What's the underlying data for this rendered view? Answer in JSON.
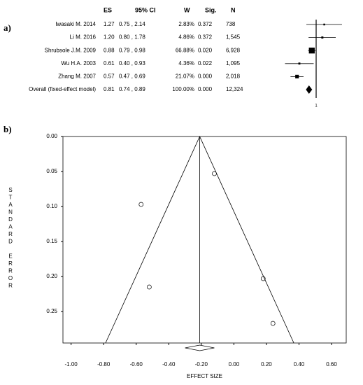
{
  "chart_data": [
    {
      "type": "forest",
      "label": "a)",
      "columns": [
        "ES",
        "95% CI",
        "W",
        "Sig.",
        "N"
      ],
      "studies": [
        {
          "name": "Iwasaki M. 2014",
          "es": 1.27,
          "es_label": "1.27",
          "ci_low": 0.75,
          "ci_high": 2.14,
          "ci_label": "0.75 , 2.14",
          "w": 2.83,
          "w_label": "2.83%",
          "sig": 0.372,
          "sig_label": "0.372",
          "n": 738,
          "n_label": "738"
        },
        {
          "name": "Li M. 2016",
          "es": 1.2,
          "es_label": "1.20",
          "ci_low": 0.8,
          "ci_high": 1.78,
          "ci_label": "0.80 , 1.78",
          "w": 4.86,
          "w_label": "4.86%",
          "sig": 0.372,
          "sig_label": "0.372",
          "n": 1545,
          "n_label": "1,545"
        },
        {
          "name": "Shrubsole J.M. 2009",
          "es": 0.88,
          "es_label": "0.88",
          "ci_low": 0.79,
          "ci_high": 0.98,
          "ci_label": "0.79 , 0.98",
          "w": 66.88,
          "w_label": "66.88%",
          "sig": 0.02,
          "sig_label": "0.020",
          "n": 6928,
          "n_label": "6,928"
        },
        {
          "name": "Wu H.A. 2003",
          "es": 0.61,
          "es_label": "0.61",
          "ci_low": 0.4,
          "ci_high": 0.93,
          "ci_label": "0.40 , 0.93",
          "w": 4.36,
          "w_label": "4.36%",
          "sig": 0.022,
          "sig_label": "0.022",
          "n": 1095,
          "n_label": "1,095"
        },
        {
          "name": "Zhang M. 2007",
          "es": 0.57,
          "es_label": "0.57",
          "ci_low": 0.47,
          "ci_high": 0.69,
          "ci_label": "0.47 , 0.69",
          "w": 21.07,
          "w_label": "21.07%",
          "sig": 0.0,
          "sig_label": "0.000",
          "n": 2018,
          "n_label": "2,018"
        }
      ],
      "overall": {
        "name": "Overall (fixed-effect model)",
        "es": 0.81,
        "es_label": "0.81",
        "ci_low": 0.74,
        "ci_high": 0.89,
        "ci_label": "0.74 , 0.89",
        "w": 100.0,
        "w_label": "100.00%",
        "sig": 0.0,
        "sig_label": "0.000",
        "n": 12324,
        "n_label": "12,324"
      },
      "xlim": [
        0.4,
        2.2
      ],
      "log_x": true,
      "xticks": [
        1
      ]
    },
    {
      "type": "funnel",
      "label": "b)",
      "xlabel": "EFFECT SIZE",
      "ylabel": "STANDARD ERROR",
      "x": [
        -0.12,
        -0.57,
        -0.52,
        0.18,
        0.24
      ],
      "y": [
        0.053,
        0.097,
        0.215,
        0.203,
        0.267
      ],
      "pooled": -0.21,
      "pooled_ci": [
        -0.3,
        -0.12
      ],
      "xlim": [
        -1.05,
        0.69
      ],
      "ylim": [
        0,
        0.295
      ],
      "y_inverted": true,
      "xticks": [
        {
          "value": -1,
          "label": "-1.00"
        },
        {
          "value": -0.8,
          "label": "-0.80"
        },
        {
          "value": -0.6,
          "label": "-0.60"
        },
        {
          "value": -0.4,
          "label": "-0.40"
        },
        {
          "value": -0.2,
          "label": "-0.20"
        },
        {
          "value": 0,
          "label": "0.00"
        },
        {
          "value": 0.2,
          "label": "0.20"
        },
        {
          "value": 0.4,
          "label": "0.40"
        },
        {
          "value": 0.6,
          "label": "0.60"
        }
      ],
      "yticks": [
        {
          "value": 0,
          "label": "0.00"
        },
        {
          "value": 0.05,
          "label": "0.05"
        },
        {
          "value": 0.1,
          "label": "0.10"
        },
        {
          "value": 0.15,
          "label": "0.15"
        },
        {
          "value": 0.2,
          "label": "0.20"
        },
        {
          "value": 0.25,
          "label": "0.25"
        }
      ]
    }
  ]
}
